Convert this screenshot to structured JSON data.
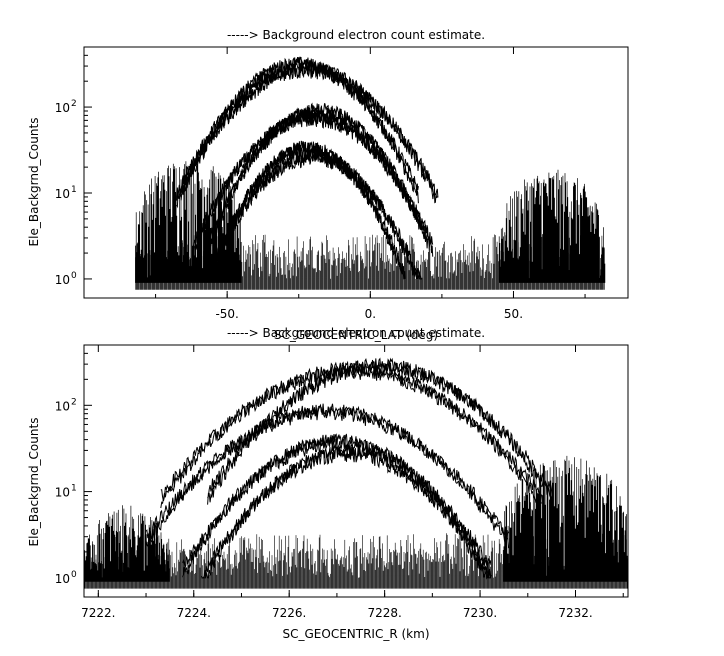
{
  "chart_data": [
    {
      "type": "line",
      "title": "-----> Background electron count estimate.",
      "xlabel": "SC_GEOCENTRIC_LAT (deg)",
      "ylabel": "Ele_Backgrnd_Counts",
      "xlim": [
        -100,
        90
      ],
      "ylim": [
        0.6,
        500
      ],
      "yscale": "log",
      "x_tick_labels": [
        {
          "value": -50,
          "label": "-50."
        },
        {
          "value": 0,
          "label": "0."
        },
        {
          "value": 50,
          "label": "50."
        }
      ],
      "y_tick_labels": [
        {
          "value": 1,
          "label": "10",
          "exp": "0"
        },
        {
          "value": 10,
          "label": "10",
          "exp": "1"
        },
        {
          "value": 100,
          "label": "10",
          "exp": "2"
        }
      ],
      "x_data_range": [
        -82,
        82
      ],
      "series": [
        {
          "peak_x": -25,
          "peak_y": 330,
          "width": 22
        },
        {
          "peak_x": -22,
          "peak_y": 290,
          "width": 24
        },
        {
          "peak_x": -18,
          "peak_y": 95,
          "width": 20
        },
        {
          "peak_x": -20,
          "peak_y": 80,
          "width": 22
        },
        {
          "peak_x": -22,
          "peak_y": 35,
          "width": 18
        },
        {
          "peak_x": -20,
          "peak_y": 28,
          "width": 20
        }
      ],
      "noise_regions": [
        {
          "x_range": [
            -82,
            -45
          ],
          "max": 25
        },
        {
          "x_range": [
            45,
            82
          ],
          "max": 18
        }
      ]
    },
    {
      "type": "line",
      "title": "-----> Background electron count estimate.",
      "xlabel": "SC_GEOCENTRIC_R (km)",
      "ylabel": "Ele_Backgrnd_Counts",
      "xlim": [
        7221.7,
        7233.1
      ],
      "ylim": [
        0.6,
        500
      ],
      "yscale": "log",
      "x_tick_labels": [
        {
          "value": 7222,
          "label": "7222."
        },
        {
          "value": 7224,
          "label": "7224."
        },
        {
          "value": 7226,
          "label": "7226."
        },
        {
          "value": 7228,
          "label": "7228."
        },
        {
          "value": 7230,
          "label": "7230."
        },
        {
          "value": 7232,
          "label": "7232."
        }
      ],
      "y_tick_labels": [
        {
          "value": 1,
          "label": "10",
          "exp": "0"
        },
        {
          "value": 10,
          "label": "10",
          "exp": "1"
        },
        {
          "value": 100,
          "label": "10",
          "exp": "2"
        }
      ],
      "x_data_range": [
        7221.7,
        7233.1
      ],
      "series": [
        {
          "peak_x": 7227.9,
          "peak_y": 300,
          "width": 1.9
        },
        {
          "peak_x": 7227.3,
          "peak_y": 270,
          "width": 2.1
        },
        {
          "peak_x": 7226.8,
          "peak_y": 90,
          "width": 2.0
        },
        {
          "peak_x": 7227.0,
          "peak_y": 40,
          "width": 1.7
        },
        {
          "peak_x": 7227.2,
          "peak_y": 30,
          "width": 1.6
        }
      ],
      "noise_regions": [
        {
          "x_range": [
            7221.7,
            7223.5
          ],
          "max": 6
        },
        {
          "x_range": [
            7230.5,
            7233.1
          ],
          "max": 25
        }
      ]
    }
  ]
}
